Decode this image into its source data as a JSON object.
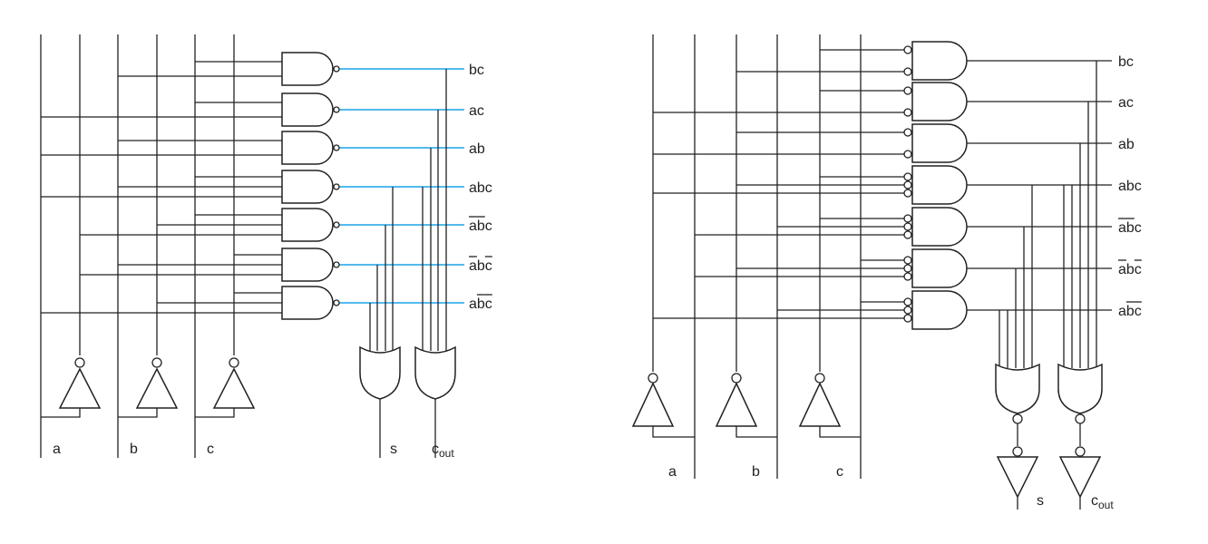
{
  "colors": {
    "wire": "#222222",
    "highlight_wire": "#1aa3e8",
    "background": "#ffffff"
  },
  "left": {
    "input_labels": [
      "a",
      "b",
      "c"
    ],
    "minterm_labels": [
      {
        "base": "bc",
        "bars": []
      },
      {
        "base": "ac",
        "bars": []
      },
      {
        "base": "ab",
        "bars": []
      },
      {
        "base": "abc",
        "bars": []
      },
      {
        "base": "abc",
        "bars": [
          0,
          1
        ]
      },
      {
        "base": "abc",
        "bars": [
          0,
          2
        ]
      },
      {
        "base": "abc",
        "bars": [
          1,
          2
        ]
      }
    ],
    "output_s": "s",
    "output_c": "c",
    "output_c_sub": "out"
  },
  "right": {
    "input_labels": [
      "a",
      "b",
      "c"
    ],
    "minterm_labels": [
      {
        "base": "bc",
        "bars": []
      },
      {
        "base": "ac",
        "bars": []
      },
      {
        "base": "ab",
        "bars": []
      },
      {
        "base": "abc",
        "bars": []
      },
      {
        "base": "abc",
        "bars": [
          0,
          1
        ]
      },
      {
        "base": "abc",
        "bars": [
          0,
          2
        ]
      },
      {
        "base": "abc",
        "bars": [
          1,
          2
        ]
      }
    ],
    "output_s": "s",
    "output_c": "c",
    "output_c_sub": "out"
  }
}
